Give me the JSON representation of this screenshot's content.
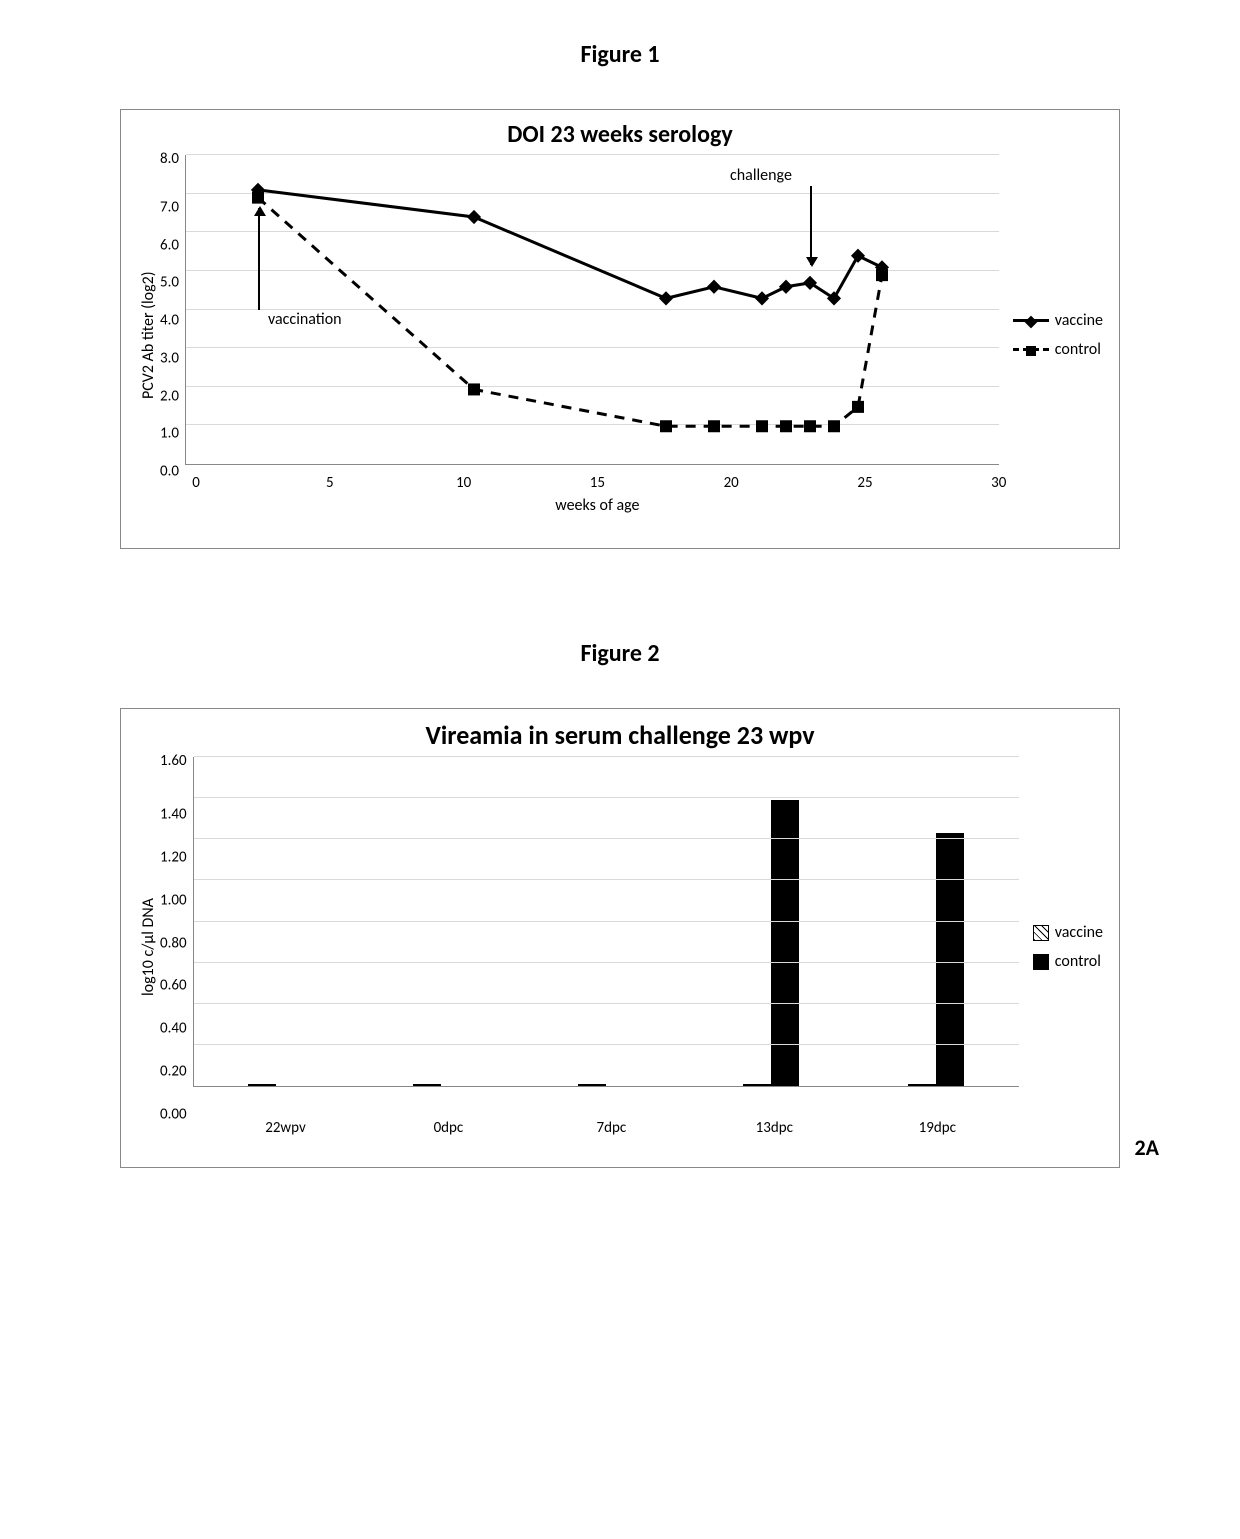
{
  "figure1": {
    "label": "Figure 1",
    "title": "DOI 23 weeks serology",
    "title_fontsize": 24,
    "ylabel": "PCV2 Ab titer (log2)",
    "xlabel": "weeks of age",
    "xlim": [
      0,
      30
    ],
    "xtick_step": 5,
    "xticks": [
      0,
      5,
      10,
      15,
      20,
      25,
      30
    ],
    "ylim": [
      0,
      8
    ],
    "ytick_step": 1,
    "yticks": [
      "8.0",
      "7.0",
      "6.0",
      "5.0",
      "4.0",
      "3.0",
      "2.0",
      "1.0",
      "0.0"
    ],
    "grid_color": "#d9d9d9",
    "border_color": "#888888",
    "background_color": "#ffffff",
    "line_width": 3,
    "series": [
      {
        "name": "vaccine",
        "style": "solid",
        "marker": "diamond",
        "color": "#000000",
        "points": [
          [
            3,
            7.1
          ],
          [
            12,
            6.4
          ],
          [
            20,
            4.3
          ],
          [
            22,
            4.6
          ],
          [
            24,
            4.3
          ],
          [
            25,
            4.6
          ],
          [
            26,
            4.7
          ],
          [
            27,
            4.3
          ],
          [
            28,
            5.4
          ],
          [
            29,
            5.1
          ]
        ]
      },
      {
        "name": "control",
        "style": "dash",
        "marker": "square",
        "color": "#000000",
        "points": [
          [
            3,
            6.9
          ],
          [
            12,
            1.95
          ],
          [
            20,
            1.0
          ],
          [
            22,
            1.0
          ],
          [
            24,
            1.0
          ],
          [
            25,
            1.0
          ],
          [
            26,
            1.0
          ],
          [
            27,
            1.0
          ],
          [
            28,
            1.5
          ],
          [
            29,
            4.9
          ]
        ]
      }
    ],
    "annotations": [
      {
        "text": "vaccination",
        "x": 3,
        "y_text": 4.0,
        "arrow": "up",
        "arrow_to_y": 6.8
      },
      {
        "text": "challenge",
        "x": 26,
        "y_text": 7.2,
        "arrow": "down",
        "arrow_to_y": 5.0
      }
    ],
    "legend": [
      {
        "label": "vaccine",
        "swatch": "line-solid-diamond"
      },
      {
        "label": "control",
        "swatch": "line-dash-square"
      }
    ]
  },
  "figure2": {
    "label": "Figure 2",
    "subfig": "2A",
    "title": "Vireamia in serum challenge 23 wpv",
    "title_fontsize": 26,
    "ylabel": "log10 c/µl DNA",
    "ylim": [
      0,
      1.6
    ],
    "ytick_step": 0.2,
    "yticks": [
      "1.60",
      "1.40",
      "1.20",
      "1.00",
      "0.80",
      "0.60",
      "0.40",
      "0.20",
      "0.00"
    ],
    "grid_color": "#d9d9d9",
    "border_color": "#888888",
    "background_color": "#ffffff",
    "categories": [
      "22wpv",
      "0dpc",
      "7dpc",
      "13dpc",
      "19dpc"
    ],
    "series": [
      {
        "name": "vaccine",
        "fill": "hatch",
        "border": "#000000",
        "values": [
          0,
          0,
          0,
          0,
          0
        ]
      },
      {
        "name": "control",
        "fill": "solid",
        "color": "#000000",
        "values": [
          0,
          0,
          0,
          1.39,
          1.23
        ]
      }
    ],
    "legend": [
      {
        "label": "vaccine",
        "swatch": "hatch"
      },
      {
        "label": "control",
        "swatch": "solid"
      }
    ]
  }
}
